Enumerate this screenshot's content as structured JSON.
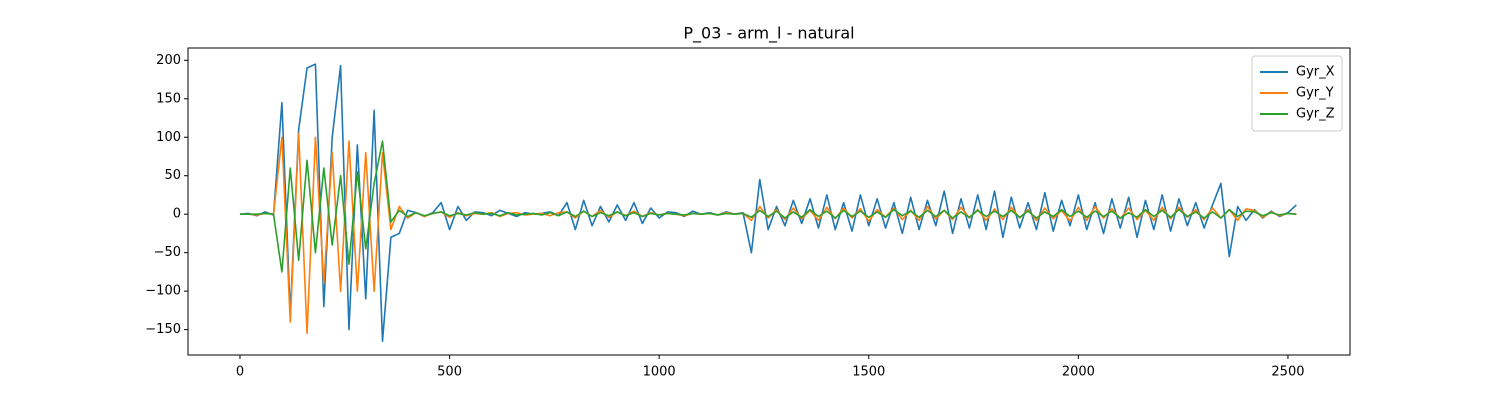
{
  "chart_data": {
    "type": "line",
    "title": "P_03 - arm_l - natural",
    "x": [
      0,
      20,
      40,
      60,
      80,
      100,
      120,
      140,
      160,
      180,
      200,
      220,
      240,
      260,
      280,
      300,
      320,
      340,
      360,
      380,
      400,
      420,
      440,
      460,
      480,
      500,
      520,
      540,
      560,
      580,
      600,
      620,
      640,
      660,
      680,
      700,
      720,
      740,
      760,
      780,
      800,
      820,
      840,
      860,
      880,
      900,
      920,
      940,
      960,
      980,
      1000,
      1020,
      1040,
      1060,
      1080,
      1100,
      1120,
      1140,
      1160,
      1180,
      1200,
      1220,
      1240,
      1260,
      1280,
      1300,
      1320,
      1340,
      1360,
      1380,
      1400,
      1420,
      1440,
      1460,
      1480,
      1500,
      1520,
      1540,
      1560,
      1580,
      1600,
      1620,
      1640,
      1660,
      1680,
      1700,
      1720,
      1740,
      1760,
      1780,
      1800,
      1820,
      1840,
      1860,
      1880,
      1900,
      1920,
      1940,
      1960,
      1980,
      2000,
      2020,
      2040,
      2060,
      2080,
      2100,
      2120,
      2140,
      2160,
      2180,
      2200,
      2220,
      2240,
      2260,
      2280,
      2300,
      2320,
      2340,
      2360,
      2380,
      2400,
      2420,
      2440,
      2460,
      2480,
      2500,
      2520
    ],
    "series": [
      {
        "name": "Gyr_X",
        "color": "#1f77b4",
        "values": [
          0,
          1,
          -2,
          3,
          -1,
          145,
          -130,
          110,
          190,
          195,
          -120,
          100,
          193,
          -150,
          90,
          -110,
          135,
          -165,
          -30,
          -25,
          5,
          2,
          -3,
          2,
          15,
          -20,
          10,
          -8,
          3,
          2,
          -2,
          5,
          1,
          -3,
          2,
          0,
          1,
          3,
          -2,
          15,
          -20,
          18,
          -15,
          10,
          -10,
          12,
          -8,
          15,
          -12,
          8,
          -5,
          3,
          2,
          -3,
          4,
          0,
          2,
          -1,
          3,
          0,
          2,
          -50,
          45,
          -20,
          10,
          -15,
          18,
          -12,
          20,
          -18,
          25,
          -20,
          15,
          -22,
          25,
          -15,
          20,
          -18,
          15,
          -25,
          22,
          -20,
          18,
          -15,
          30,
          -25,
          20,
          -18,
          25,
          -20,
          30,
          -30,
          22,
          -18,
          15,
          -20,
          28,
          -22,
          18,
          -15,
          25,
          -20,
          15,
          -25,
          20,
          -18,
          22,
          -30,
          18,
          -20,
          25,
          -22,
          20,
          -15,
          15,
          -18,
          12,
          40,
          -55,
          10,
          -8,
          6,
          -5,
          4,
          -3,
          2,
          12
        ]
      },
      {
        "name": "Gyr_Y",
        "color": "#ff7f0e",
        "values": [
          0,
          0,
          -1,
          1,
          0,
          100,
          -140,
          105,
          -155,
          100,
          -90,
          80,
          -100,
          95,
          -100,
          80,
          -100,
          80,
          -20,
          10,
          -5,
          2,
          -3,
          1,
          3,
          -4,
          2,
          -2,
          1,
          0,
          2,
          -3,
          1,
          2,
          -1,
          0,
          1,
          -2,
          2,
          3,
          -5,
          4,
          -3,
          5,
          -4,
          3,
          -2,
          4,
          -3,
          2,
          -1,
          1,
          0,
          -2,
          1,
          0,
          1,
          -1,
          2,
          0,
          1,
          -8,
          10,
          -5,
          6,
          -7,
          8,
          -6,
          5,
          -8,
          9,
          -6,
          8,
          -5,
          7,
          -9,
          6,
          -4,
          8,
          -7,
          5,
          -8,
          10,
          -6,
          5,
          -7,
          9,
          -5,
          6,
          -8,
          7,
          -7,
          9,
          -5,
          6,
          -8,
          8,
          -6,
          5,
          -9,
          9,
          -8,
          10,
          -5,
          7,
          -6,
          8,
          -7,
          5,
          -8,
          9,
          -6,
          9,
          -4,
          6,
          -7,
          8,
          -5,
          6,
          -8,
          7,
          5,
          -4,
          3,
          -2,
          1,
          0
        ]
      },
      {
        "name": "Gyr_Z",
        "color": "#2ca02c",
        "values": [
          0,
          0,
          0,
          1,
          0,
          -75,
          60,
          -60,
          70,
          -50,
          60,
          -40,
          50,
          -65,
          55,
          -45,
          40,
          95,
          -10,
          5,
          -3,
          2,
          -2,
          1,
          3,
          -2,
          1,
          -1,
          2,
          0,
          1,
          -2,
          2,
          -1,
          0,
          1,
          -1,
          2,
          -2,
          3,
          -3,
          4,
          -3,
          2,
          -2,
          3,
          -2,
          2,
          -3,
          1,
          -1,
          1,
          0,
          -1,
          1,
          0,
          1,
          -1,
          1,
          0,
          1,
          -4,
          5,
          -3,
          4,
          -5,
          3,
          -4,
          6,
          -3,
          4,
          -5,
          5,
          -3,
          4,
          -4,
          3,
          -4,
          6,
          -2,
          4,
          -4,
          5,
          -3,
          5,
          -5,
          3,
          -4,
          5,
          -3,
          4,
          -3,
          5,
          -4,
          4,
          -5,
          3,
          -3,
          6,
          -3,
          4,
          -4,
          4,
          -3,
          4,
          -5,
          2,
          -4,
          6,
          -3,
          5,
          -4,
          6,
          -3,
          3,
          -5,
          3,
          -5,
          6,
          -3,
          4,
          3,
          -2,
          2,
          -1,
          1,
          0
        ]
      }
    ],
    "xlim": [
      -124,
      2648
    ],
    "ylim": [
      -183,
      216
    ],
    "xticks": [
      0,
      500,
      1000,
      1500,
      2000,
      2500
    ],
    "yticks": [
      {
        "value": -150,
        "label": "−150"
      },
      {
        "value": -100,
        "label": "−100"
      },
      {
        "value": -50,
        "label": "−50"
      },
      0,
      50,
      100,
      150,
      200
    ],
    "legend": "upper right"
  }
}
